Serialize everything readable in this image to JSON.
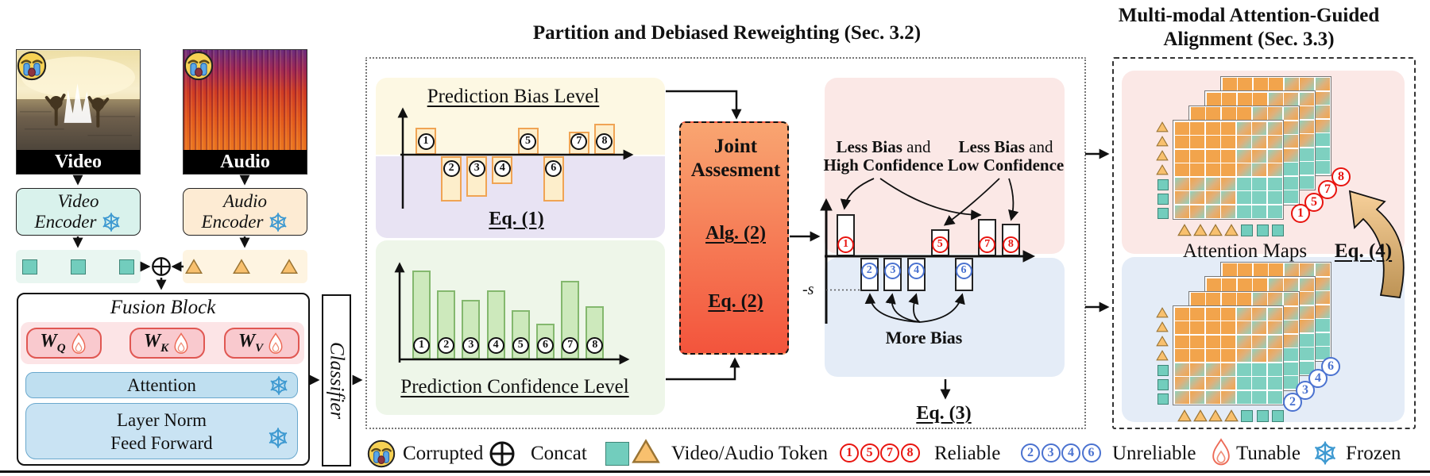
{
  "colors": {
    "reliable_red": "#e8140f",
    "unreliable_blue": "#4a72d0",
    "video_token_teal": "#72cdbd",
    "audio_token_orange": "#f8c06e",
    "attention_cell_orange": "#f2a44c",
    "attention_cell_teal": "#7ed0c0",
    "joint_gradient_top": "#f9a571",
    "joint_gradient_bottom": "#f3543c",
    "bias_region_yellow": "#fdf8e3",
    "bias_region_purple": "#e8e3f3",
    "confidence_region_green": "#eef6e9",
    "partition_pink": "#fbe8e6",
    "partition_blue": "#e4ecf7"
  },
  "left": {
    "video_label": "Video",
    "audio_label": "Audio",
    "video_encoder": {
      "l1": "Video",
      "l2": "Encoder"
    },
    "audio_encoder": {
      "l1": "Audio",
      "l2": "Encoder"
    },
    "fusion_title": "Fusion Block",
    "weights": [
      {
        "base": "W",
        "sub": "Q"
      },
      {
        "base": "W",
        "sub": "K"
      },
      {
        "base": "W",
        "sub": "V"
      }
    ],
    "attention_label": "Attention",
    "layer_norm": "Layer Norm",
    "feed_forward": "Feed Forward",
    "classifier_label": "Classifier"
  },
  "middle": {
    "title": "Partition and Debiased Reweighting (Sec. 3.2)",
    "bias_title": "Prediction Bias Level",
    "eq1": "Eq. (1)",
    "conf_title": "Prediction Confidence Level",
    "joint": {
      "l1": "Joint",
      "l2": "Assesment",
      "alg": "Alg. (2)",
      "eq": "Eq. (2)"
    },
    "partition": {
      "label_high": {
        "b": "Less Bias",
        "mid": " and",
        "l2": "High Confidence"
      },
      "label_low": {
        "b": "Less Bias",
        "mid": " and",
        "l2": "Low Confidence"
      },
      "more_bias": "More Bias",
      "neg_s": "-s",
      "eq3": "Eq. (3)"
    }
  },
  "right": {
    "title_l1": "Multi-modal Attention-Guided",
    "title_l2": "Alignment (Sec. 3.3)",
    "attention_maps": "Attention Maps",
    "eq4": "Eq. (4)",
    "reliable_numbers": [
      "1",
      "5",
      "7",
      "8"
    ],
    "unreliable_numbers": [
      "2",
      "3",
      "4",
      "6"
    ],
    "token_sequence": [
      "audio",
      "audio",
      "audio",
      "audio",
      "video",
      "video",
      "video"
    ]
  },
  "legend": {
    "corrupted": "Corrupted",
    "concat": "Concat",
    "token": "Video/Audio Token",
    "reliable": "Reliable",
    "unreliable": "Unreliable",
    "tunable": "Tunable",
    "frozen": "Frozen",
    "reliable_numbers": [
      "1",
      "5",
      "7",
      "8"
    ],
    "unreliable_numbers": [
      "2",
      "3",
      "4",
      "6"
    ]
  },
  "chart_data": [
    {
      "type": "bar",
      "title": "Prediction Bias Level",
      "categories": [
        "1",
        "2",
        "3",
        "4",
        "5",
        "6",
        "7",
        "8"
      ],
      "values": [
        34,
        -57,
        -51,
        -35,
        34,
        -57,
        29,
        39
      ],
      "units": "relative px (positive = above axis)",
      "xlabel": "",
      "ylabel": "",
      "grid": false,
      "annotation": "Eq. (1)"
    },
    {
      "type": "bar",
      "title": "Prediction Confidence Level",
      "categories": [
        "1",
        "2",
        "3",
        "4",
        "5",
        "6",
        "7",
        "8"
      ],
      "values": [
        112,
        87,
        75,
        87,
        62,
        45,
        99,
        67
      ],
      "units": "relative px bar heights",
      "xlabel": "",
      "ylabel": "",
      "grid": false
    },
    {
      "type": "bar",
      "title": "Joint partition (reliable vs unreliable)",
      "categories": [
        "1",
        "2",
        "3",
        "4",
        "5",
        "6",
        "7",
        "8"
      ],
      "values": [
        53,
        -42,
        -42,
        -42,
        34,
        -42,
        47,
        41
      ],
      "threshold_label": "-s",
      "groups": {
        "reliable": [
          "1",
          "5",
          "7",
          "8"
        ],
        "unreliable": [
          "2",
          "3",
          "4",
          "6"
        ]
      },
      "annotations": [
        "Less Bias and High Confidence",
        "Less Bias and Low Confidence",
        "More Bias",
        "Eq. (3)"
      ]
    }
  ]
}
